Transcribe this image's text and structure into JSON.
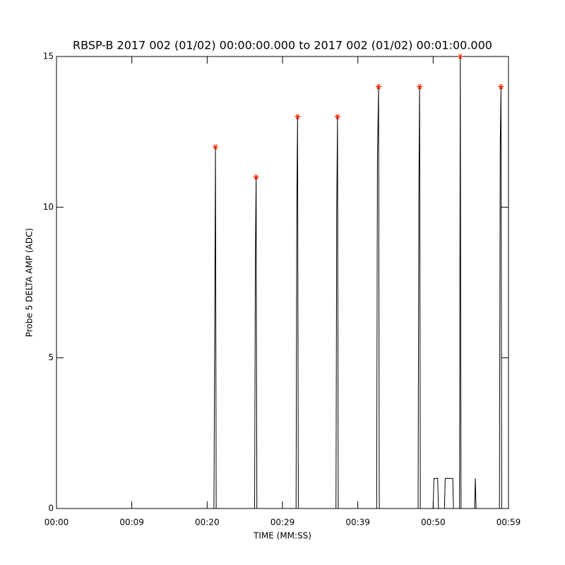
{
  "chart_data": {
    "type": "line",
    "title": "RBSP-B 2017 002 (01/02) 00:00:00.000 to 2017 002 (01/02) 00:01:00.000",
    "x_label": "TIME (MM:SS)",
    "y_label": "Probe 5 DELTA AMP (ADC)",
    "xlim": [
      0,
      60
    ],
    "xticks": [
      {
        "value": 0,
        "label": "00:00"
      },
      {
        "value": 10,
        "label": "00:09"
      },
      {
        "value": 20,
        "label": "00:20"
      },
      {
        "value": 30,
        "label": "00:29"
      },
      {
        "value": 40,
        "label": "00:39"
      },
      {
        "value": 50,
        "label": "00:50"
      },
      {
        "value": 60,
        "label": "00:59"
      }
    ],
    "ylim": [
      0,
      15
    ],
    "yticks": [
      0,
      5,
      10,
      15
    ],
    "series": [
      {
        "color": "#000000",
        "x": [
          0,
          20.9,
          21.0,
          21.1,
          21.2,
          26.3,
          26.4,
          26.5,
          26.6,
          31.8,
          31.9,
          32.0,
          32.1,
          37.1,
          37.2,
          37.3,
          37.4,
          42.5,
          42.6,
          42.75,
          42.85,
          48.0,
          48.1,
          48.2,
          48.3,
          50.0,
          50.1,
          50.6,
          50.7,
          51.5,
          51.6,
          52.6,
          52.7,
          53.5,
          53.6,
          53.7,
          55.5,
          55.6,
          55.7,
          58.8,
          58.9,
          59.0,
          59.1,
          60
        ],
        "values": [
          0,
          0,
          6,
          12,
          0,
          0,
          8.5,
          11,
          0,
          0,
          10,
          13,
          0,
          0,
          10,
          13,
          0,
          0,
          11.5,
          14,
          0,
          0,
          10.5,
          14,
          0,
          0,
          1,
          1,
          0,
          0,
          1,
          1,
          0,
          0,
          15,
          0,
          0,
          1,
          0,
          0,
          12,
          14,
          0,
          0
        ]
      },
      {
        "color": "#ff2000",
        "marker": "*",
        "x": [
          21.1,
          26.5,
          32.0,
          37.3,
          42.75,
          48.2,
          53.6,
          59.0
        ],
        "values": [
          12,
          11,
          13,
          13,
          14,
          14,
          15,
          14
        ]
      }
    ]
  }
}
